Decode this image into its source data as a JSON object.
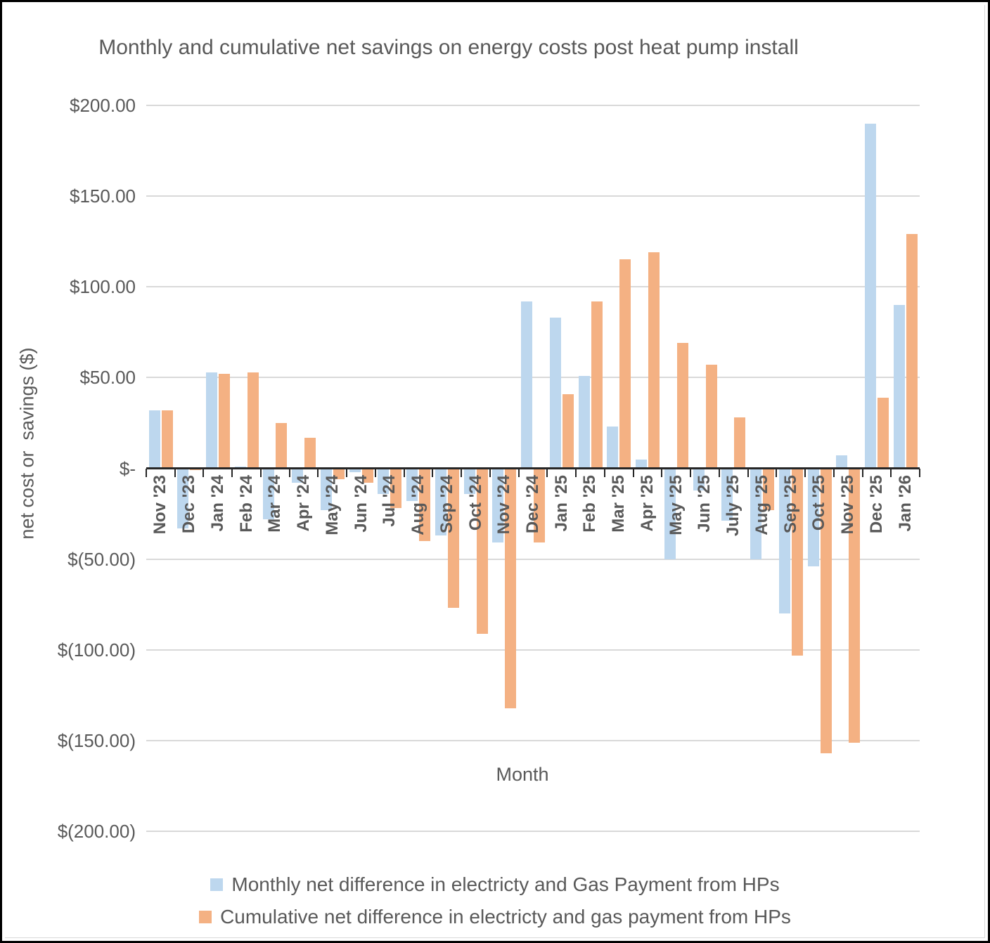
{
  "chart_data": {
    "type": "bar",
    "title": "Monthly and cumulative net savings on energy costs post heat pump install",
    "xlabel": "Month",
    "ylabel": "net cost or  savings ($)",
    "categories": [
      "Nov '23",
      "Dec '23",
      "Jan '24",
      "Feb '24",
      "Mar '24",
      "Apr '24",
      "May '24",
      "Jun '24",
      "Jul '24",
      "Aug '24",
      "Sep '24",
      "Oct '24",
      "Nov '24",
      "Dec '24",
      "Jan '25",
      "Feb '25",
      "Mar '25",
      "Apr '25",
      "May '25",
      "Jun '25",
      "July '25",
      "Aug '25",
      "Sep '25",
      "Oct '25",
      "Nov '25",
      "Dec '25",
      "Jan '26"
    ],
    "series": [
      {
        "name": "Monthly net difference in electricty and Gas Payment from HPs",
        "color": "#BDD7EE",
        "values": [
          32,
          -33,
          53,
          1,
          -28,
          -8,
          -23,
          -2,
          -14,
          -18,
          -37,
          -14,
          -41,
          92,
          83,
          51,
          23,
          5,
          -50,
          -12,
          -29,
          -50,
          -80,
          -54,
          7,
          190,
          90
        ]
      },
      {
        "name": "Cumulative net difference in electricty and gas payment from HPs",
        "color": "#F4B183",
        "values": [
          32,
          -1,
          52,
          53,
          25,
          17,
          -6,
          -8,
          -22,
          -40,
          -77,
          -91,
          -132,
          -41,
          41,
          92,
          115,
          119,
          69,
          57,
          28,
          -23,
          -103,
          -157,
          -151,
          39,
          129
        ]
      }
    ],
    "y_axis": {
      "min": -200,
      "max": 200,
      "step": 50,
      "tick_labels": [
        "$200.00",
        "$150.00",
        "$100.00",
        "$50.00",
        "$-",
        "$(50.00)",
        "$(100.00)",
        "$(150.00)",
        "$(200.00)"
      ]
    },
    "grid": true,
    "legend_position": "bottom",
    "colors": {
      "text": "#595959",
      "gridline": "#d9d9d9",
      "axis": "#262626",
      "background": "#ffffff"
    }
  }
}
